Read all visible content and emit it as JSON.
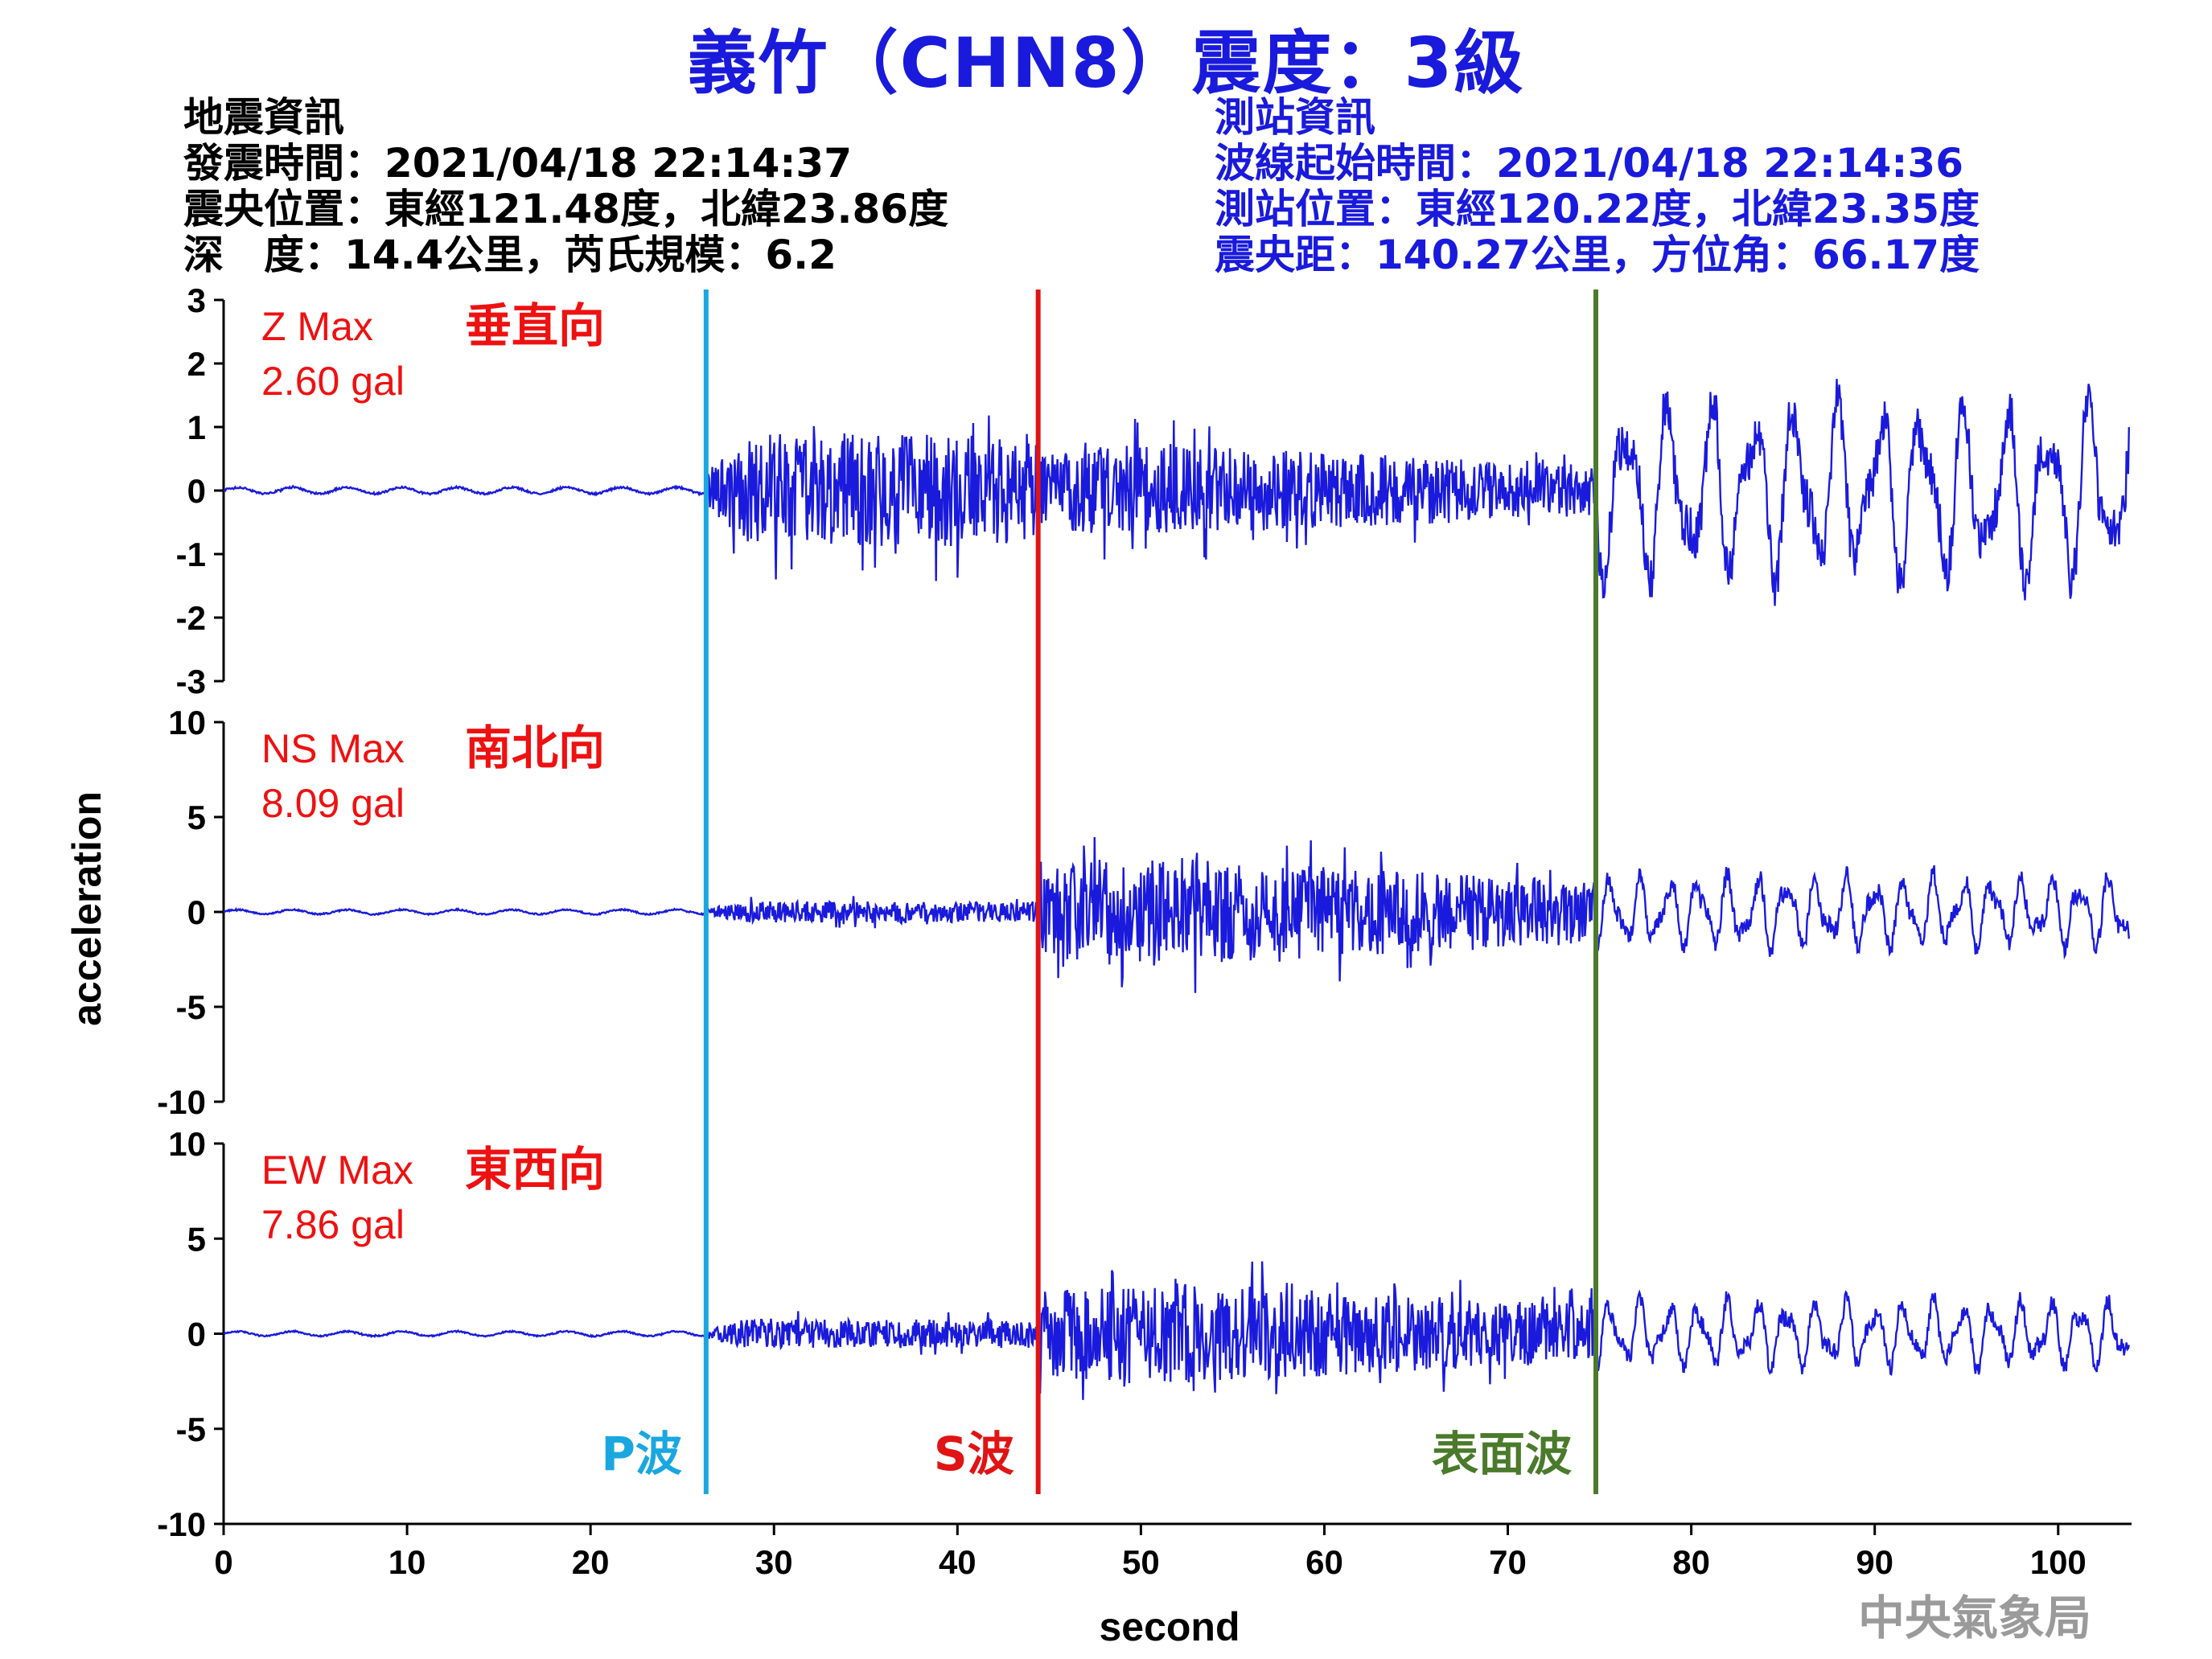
{
  "title": "義竹（CHN8）震度：3級",
  "earthquake_info": {
    "heading": "地震資訊",
    "time": "發震時間：2021/04/18 22:14:37",
    "epicenter": "震央位置：東經121.48度，北緯23.86度",
    "depth_magnitude": "深　度：14.4公里，芮氏規模：6.2"
  },
  "station_info": {
    "heading": "測站資訊",
    "start_time": "波線起始時間：2021/04/18 22:14:36",
    "location": "測站位置：東經120.22度，北緯23.35度",
    "distance": "震央距：140.27公里，方位角：66.17度"
  },
  "agency": "中央氣象局",
  "colors": {
    "trace": "#1a1adc",
    "title": "#1a1adc",
    "label_red": "#ee1111",
    "p_wave": "#1aa7e0",
    "s_wave": "#e01414",
    "surface_wave": "#4a7a2a"
  },
  "chart_data": {
    "type": "line",
    "xlabel": "second",
    "ylabel": "acceleration",
    "xlim": [
      0,
      104
    ],
    "xticks": [
      0,
      10,
      20,
      30,
      40,
      50,
      60,
      70,
      80,
      90,
      100
    ],
    "grid": false,
    "panels": [
      {
        "component": "Z",
        "label": "Z Max",
        "value_label": "2.60 gal",
        "direction": "垂直向",
        "max_gal": 2.6,
        "ylim": [
          -3,
          3
        ],
        "yticks": [
          3,
          2,
          1,
          0,
          -1,
          -2,
          -3
        ],
        "envelope": {
          "pre_p": 0.05,
          "p_to_s": 0.9,
          "s_to_surface": 0.75,
          "surface": 1.05,
          "surface_period": 2.3
        }
      },
      {
        "component": "NS",
        "label": "NS Max",
        "value_label": "8.09 gal",
        "direction": "南北向",
        "max_gal": 8.09,
        "ylim": [
          -10,
          10
        ],
        "yticks": [
          10,
          5,
          0,
          -5,
          -10
        ],
        "envelope": {
          "pre_p": 0.12,
          "p_to_s": 0.55,
          "s_to_surface": 3.0,
          "surface": 1.4,
          "surface_period": 1.6
        }
      },
      {
        "component": "EW",
        "label": "EW Max",
        "value_label": "7.86 gal",
        "direction": "東西向",
        "max_gal": 7.86,
        "ylim": [
          -10,
          10
        ],
        "yticks": [
          10,
          5,
          0,
          -5,
          -10
        ],
        "envelope": {
          "pre_p": 0.12,
          "p_to_s": 0.75,
          "s_to_surface": 2.8,
          "surface": 1.3,
          "surface_period": 1.6
        }
      }
    ],
    "phase_markers": [
      {
        "name": "P波",
        "time": 26.3
      },
      {
        "name": "S波",
        "time": 44.4
      },
      {
        "name": "表面波",
        "time": 74.8
      }
    ]
  }
}
